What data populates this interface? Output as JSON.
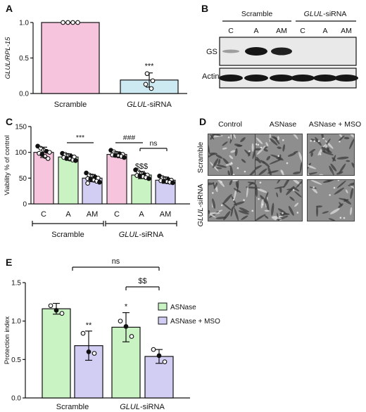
{
  "panels": {
    "A": "A",
    "B": "B",
    "C": "C",
    "D": "D",
    "E": "E"
  },
  "colors": {
    "scramble_pink": "#f6c4dc",
    "asnase_green": "#c9f3c3",
    "msoa_lavender": "#d2cdf3",
    "sirna_blue": "#cde9f2",
    "blot_bg": "#e9e9e9",
    "micro_bg": "#8e8e8e",
    "micro_cell": "#e7e7e7"
  },
  "panelB": {
    "group_scramble": "Scramble",
    "group_sirna_prefix": "GLUL",
    "group_sirna_suffix": "-siRNA",
    "lanes": [
      "C",
      "A",
      "AM",
      "C",
      "A",
      "AM"
    ],
    "row_gs": "GS",
    "row_actin": "Actin"
  },
  "panelD": {
    "columns": [
      "Control",
      "ASNase",
      "ASNase + MSO"
    ],
    "row_scramble": "Scramble",
    "row_sirna_prefix": "GLUL",
    "row_sirna_suffix": "-siRNA"
  },
  "chart_data": [
    {
      "id": "A",
      "type": "bar",
      "categories": [
        "Scramble",
        "GLUL-siRNA"
      ],
      "category_display": [
        {
          "pre": "",
          "ital": "",
          "post": "Scramble"
        },
        {
          "pre": "",
          "ital": "GLUL",
          "post": "-siRNA"
        }
      ],
      "values": [
        1.0,
        0.19
      ],
      "errors": [
        0.003,
        0.1
      ],
      "points": [
        [
          1.0,
          1.0,
          1.0,
          1.0
        ],
        [
          0.28,
          0.18,
          0.13,
          0.07
        ]
      ],
      "ylim": [
        0,
        1.0
      ],
      "yticks": [
        0.0,
        0.5,
        1.0
      ],
      "ytick_labels": [
        "0.0",
        "0.5",
        "1.0"
      ],
      "ylabel": "GLUL/RPL-15",
      "annotations": [
        "***"
      ]
    },
    {
      "id": "C",
      "type": "bar",
      "categories": [
        "C",
        "A",
        "AM",
        "C",
        "A",
        "AM"
      ],
      "values": [
        100,
        91,
        50,
        96,
        56,
        46
      ],
      "errors": [
        10,
        6,
        7,
        5,
        7,
        6
      ],
      "points": [
        [
          112,
          108,
          104,
          102,
          100,
          98,
          96,
          92,
          88
        ],
        [
          98,
          96,
          94,
          92,
          91,
          90,
          88,
          87,
          85,
          84
        ],
        [
          60,
          56,
          54,
          52,
          50,
          49,
          48,
          46,
          44,
          42,
          40
        ],
        [
          104,
          101,
          98,
          97,
          96,
          95,
          94,
          93,
          92,
          90
        ],
        [
          66,
          62,
          59,
          57,
          56,
          55,
          54,
          53,
          51,
          49
        ],
        [
          54,
          51,
          49,
          47,
          46,
          45,
          44,
          43,
          42,
          41
        ]
      ],
      "ylim": [
        0,
        150
      ],
      "yticks": [
        0,
        50,
        100,
        150
      ],
      "ytick_labels": [
        "0",
        "50",
        "100",
        "150"
      ],
      "ylabel": "Viability % of control",
      "group_labels": [
        "Scramble",
        "GLUL-siRNA"
      ],
      "group_display": [
        {
          "ital": "",
          "post": "Scramble"
        },
        {
          "ital": "GLUL",
          "post": "-siRNA"
        }
      ],
      "brackets": [
        {
          "from": 1,
          "to": 2,
          "label": "***"
        },
        {
          "from": 3,
          "to": 4,
          "label": "###"
        },
        {
          "from": 4,
          "to": 5,
          "label": "ns"
        }
      ],
      "annotations": [
        "$$$"
      ]
    },
    {
      "id": "E",
      "type": "bar",
      "groups": [
        "Scramble",
        "GLUL-siRNA"
      ],
      "group_display": [
        {
          "ital": "",
          "post": "Scramble"
        },
        {
          "ital": "GLUL",
          "post": "-siRNA"
        }
      ],
      "series": [
        {
          "name": "ASNase",
          "values": [
            1.16,
            0.92
          ],
          "errors": [
            0.07,
            0.19
          ],
          "points": [
            [
              1.2,
              1.14,
              1.1
            ],
            [
              1.0,
              0.93,
              0.8
            ]
          ]
        },
        {
          "name": "ASNase + MSO",
          "values": [
            0.68,
            0.54
          ],
          "errors": [
            0.19,
            0.09
          ],
          "points": [
            [
              0.84,
              0.6,
              0.58
            ],
            [
              0.63,
              0.55,
              0.47
            ]
          ]
        }
      ],
      "ylim": [
        0,
        1.5
      ],
      "yticks": [
        0.0,
        0.5,
        1.0,
        1.5
      ],
      "ytick_labels": [
        "0.0",
        "0.5",
        "1.0",
        "1.5"
      ],
      "ylabel": "Protection index",
      "bar_stars": [
        "",
        "**",
        "*",
        ""
      ],
      "brackets": [
        {
          "label": "ns"
        },
        {
          "label": "$$"
        }
      ]
    }
  ]
}
